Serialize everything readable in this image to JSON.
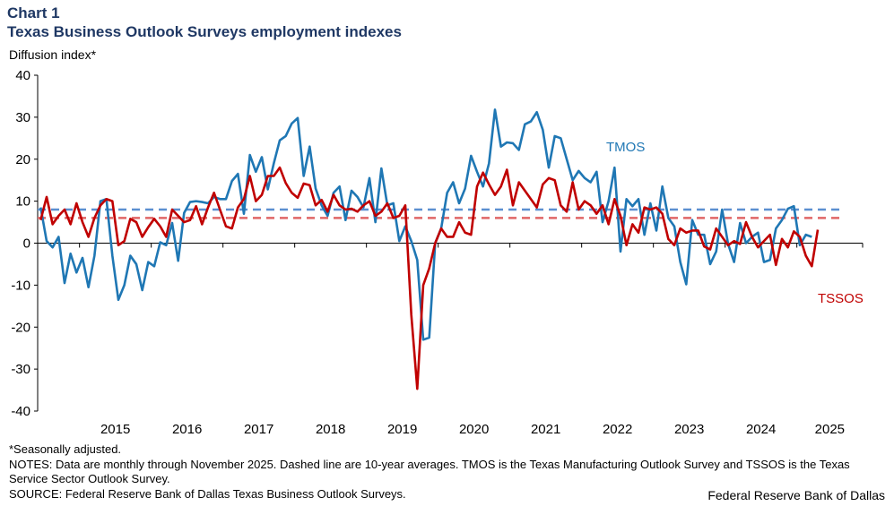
{
  "header": {
    "chart_label": "Chart 1",
    "title": "Texas Business Outlook Surveys employment indexes",
    "y_unit": "Diffusion index*"
  },
  "footer": {
    "note1": "*Seasonally adjusted.",
    "note2": "NOTES: Data are monthly through November 2025. Dashed line are 10-year averages. TMOS is the Texas Manufacturing Outlook Survey and TSSOS is the Texas Service Sector Outlook Survey.",
    "source": "SOURCE: Federal Reserve Bank of Dallas Texas Business Outlook Surveys.",
    "credit": "Federal Reserve Bank of Dallas"
  },
  "chart_data": {
    "type": "line",
    "title": "Texas Business Outlook Surveys employment indexes",
    "ylabel": "Diffusion index*",
    "xlabel": "",
    "ylim": [
      -40,
      40
    ],
    "yticks": [
      -40,
      -30,
      -20,
      -10,
      0,
      10,
      20,
      30,
      40
    ],
    "xlim": [
      "2014-06",
      "2025-11"
    ],
    "x_tick_labels": [
      "2015",
      "2016",
      "2017",
      "2018",
      "2019",
      "2020",
      "2021",
      "2022",
      "2023",
      "2024",
      "2025"
    ],
    "grid": false,
    "colors": {
      "TMOS": "#1f77b4",
      "TSSOS": "#c00000",
      "TMOS_avg": "#5b8fd0",
      "TSSOS_avg": "#e06666"
    },
    "series": [
      {
        "name": "TMOS",
        "start": "2014-06",
        "values": [
          8.5,
          0.5,
          -1,
          1.5,
          -9.5,
          -2.5,
          -7,
          -3.5,
          -10.5,
          -3,
          10,
          10.5,
          -3,
          -13.5,
          -10,
          -3,
          -5,
          -11.2,
          -4.5,
          -5.5,
          0.2,
          -0.5,
          4.8,
          -4.2,
          7.2,
          9.8,
          10,
          9.8,
          9.5,
          11,
          10.5,
          10.5,
          14.8,
          16.5,
          7,
          21,
          17,
          20.5,
          12.8,
          19,
          24.5,
          25.5,
          28.5,
          29.8,
          16,
          23,
          13,
          9,
          6.5,
          12,
          13.5,
          5.5,
          12.5,
          11,
          8.5,
          15.5,
          5,
          17.8,
          9,
          9.5,
          0.5,
          4,
          0.5,
          -4,
          -23,
          -22.5,
          0,
          3.5,
          12,
          14.5,
          9.5,
          13,
          20.8,
          17,
          13.5,
          19,
          31.8,
          23,
          24,
          23.8,
          22.2,
          28.3,
          29,
          31.2,
          27,
          18,
          25.5,
          25,
          20,
          15,
          17.2,
          15.5,
          14.5,
          17,
          5,
          10,
          18,
          -2,
          10.5,
          8.8,
          10.5,
          2,
          9.5,
          3,
          13.5,
          6,
          4,
          -4.5,
          -9.8,
          5.5,
          2,
          2,
          -5,
          -2,
          8,
          -0.2,
          -4.5,
          4.8,
          0,
          1.5,
          2.5,
          -4.5,
          -4,
          3.5,
          5.5,
          8.2,
          8.8,
          -0.5,
          2,
          1.5
        ]
      },
      {
        "name": "TSSOS",
        "start": "2014-06",
        "values": [
          5.5,
          11,
          4.5,
          6.5,
          8,
          4.5,
          9.5,
          5,
          1.5,
          6,
          9,
          10.5,
          10,
          -0.5,
          0.5,
          5.8,
          5,
          1.5,
          3.8,
          5.8,
          4,
          1.5,
          8,
          6.5,
          5,
          5.5,
          8.8,
          4.5,
          8.5,
          12,
          8,
          4,
          3.5,
          8.5,
          10.5,
          16,
          10,
          11.5,
          16,
          16,
          18,
          14.3,
          12,
          10.8,
          14.2,
          13.8,
          9,
          10.3,
          7.5,
          11.5,
          9,
          8,
          8.2,
          7.5,
          9,
          10,
          6.5,
          7.5,
          9.5,
          6,
          6.5,
          9,
          -17,
          -34.7,
          -10,
          -6,
          0,
          3.5,
          1.5,
          1.5,
          5,
          2.5,
          2,
          13.5,
          16.8,
          14,
          11.5,
          13.5,
          17.5,
          9,
          14.5,
          12.5,
          10.5,
          8.5,
          14,
          15.5,
          15,
          9,
          7.5,
          14.5,
          8,
          10,
          9,
          7,
          9,
          4.5,
          10.5,
          6.5,
          -0.5,
          4.5,
          2.5,
          8.5,
          8,
          8.5,
          7,
          1,
          -0.5,
          3.5,
          2.5,
          3,
          3,
          -0.8,
          -1.5,
          3.5,
          1.5,
          -0.5,
          0.5,
          -0.2,
          5,
          1.5,
          -1,
          0.5,
          2,
          -5.2,
          1,
          -1,
          2.8,
          1.5,
          -3,
          -5.5,
          3.2
        ]
      }
    ],
    "averages": [
      {
        "name": "TMOS 10-year average",
        "value": 8.0
      },
      {
        "name": "TSSOS 10-year average",
        "value": 6.0
      }
    ],
    "annotations": [
      {
        "text": "TMOS",
        "series": "TMOS"
      },
      {
        "text": "TSSOS",
        "series": "TSSOS"
      }
    ]
  }
}
